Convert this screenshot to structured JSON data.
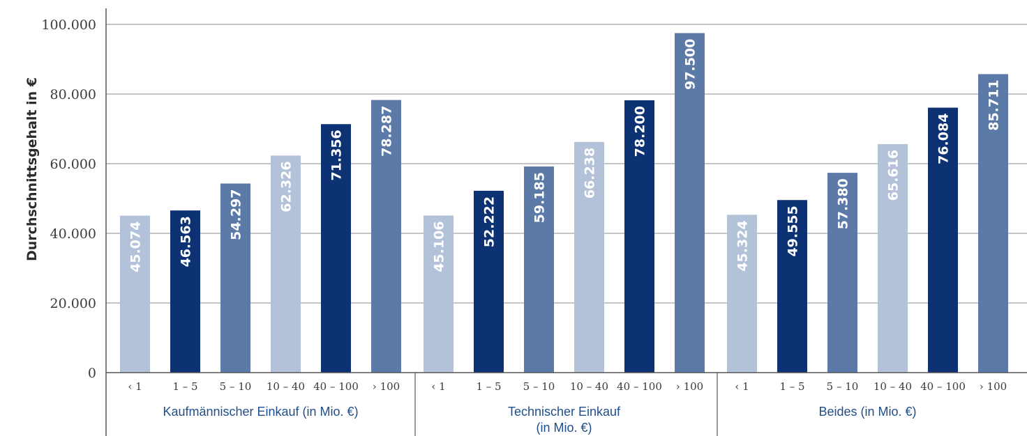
{
  "chart_data": {
    "type": "bar",
    "ylabel": "Durchschnittsgehalt in €",
    "ylim": [
      0,
      100000
    ],
    "yticks": [
      "0",
      "20.000",
      "40.000",
      "60.000",
      "80.000",
      "100.000"
    ],
    "grid": true,
    "categories": [
      "‹ 1",
      "1 – 5",
      "5 – 10",
      "10 – 40",
      "40 – 100",
      "› 100"
    ],
    "colors": [
      "#b3c2d8",
      "#0d3273",
      "#5b7aa8",
      "#b3c2d8",
      "#0d3273",
      "#5b7aa8"
    ],
    "label_colors": [
      "#ffffff",
      "#ffffff",
      "#ffffff",
      "#ffffff",
      "#ffffff",
      "#ffffff"
    ],
    "groups": [
      {
        "name": "Kaufmännischer Einkauf (in Mio. €)",
        "values": [
          45074,
          46563,
          54297,
          62326,
          71356,
          78287
        ],
        "labels": [
          "45.074",
          "46.563",
          "54.297",
          "62.326",
          "71.356",
          "78.287"
        ]
      },
      {
        "name": "Technischer Einkauf (in Mio. €)",
        "name_lines": [
          "Technischer Einkauf",
          "(in Mio. €)"
        ],
        "values": [
          45106,
          52222,
          59185,
          66238,
          78200,
          97500
        ],
        "labels": [
          "45.106",
          "52.222",
          "59.185",
          "66.238",
          "78.200",
          "97.500"
        ]
      },
      {
        "name": "Beides (in Mio. €)",
        "values": [
          45324,
          49555,
          57380,
          65616,
          76084,
          85711
        ],
        "labels": [
          "45.324",
          "49.555",
          "57.380",
          "65.616",
          "76.084",
          "85.711"
        ]
      }
    ]
  }
}
